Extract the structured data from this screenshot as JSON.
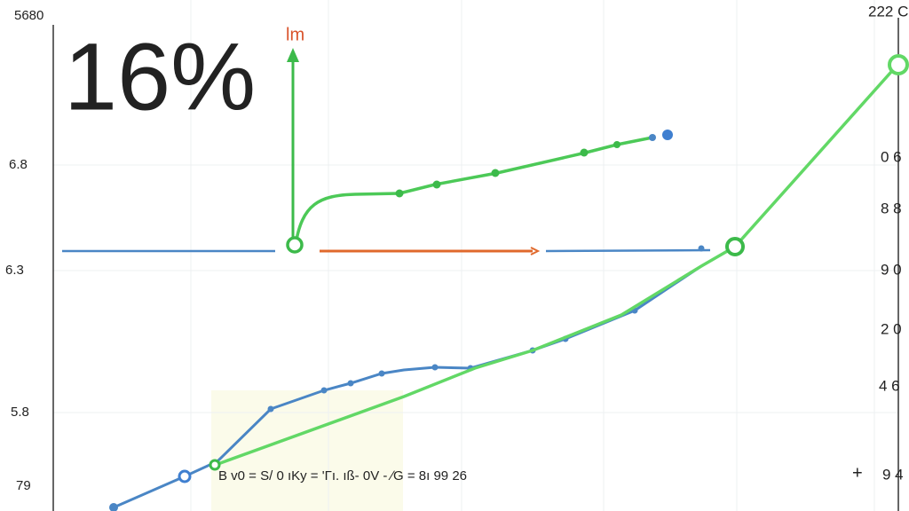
{
  "figure": {
    "headline": "16%",
    "arrow_label": "lm",
    "left_labels": [
      "5680",
      "6.8",
      "6.3",
      "5.8",
      "79"
    ],
    "top_right_label": "222 C",
    "right_labels": [
      "0 6",
      "8 8",
      "9 0",
      "2 0",
      "4 6"
    ],
    "bottom_right_labels": [
      "+",
      "9 4"
    ],
    "formula": "B  v0 = S/ 0 ıKy =  'Γı.  ıß-  0V  -  ∕G  =  8ı  99  26"
  }
}
